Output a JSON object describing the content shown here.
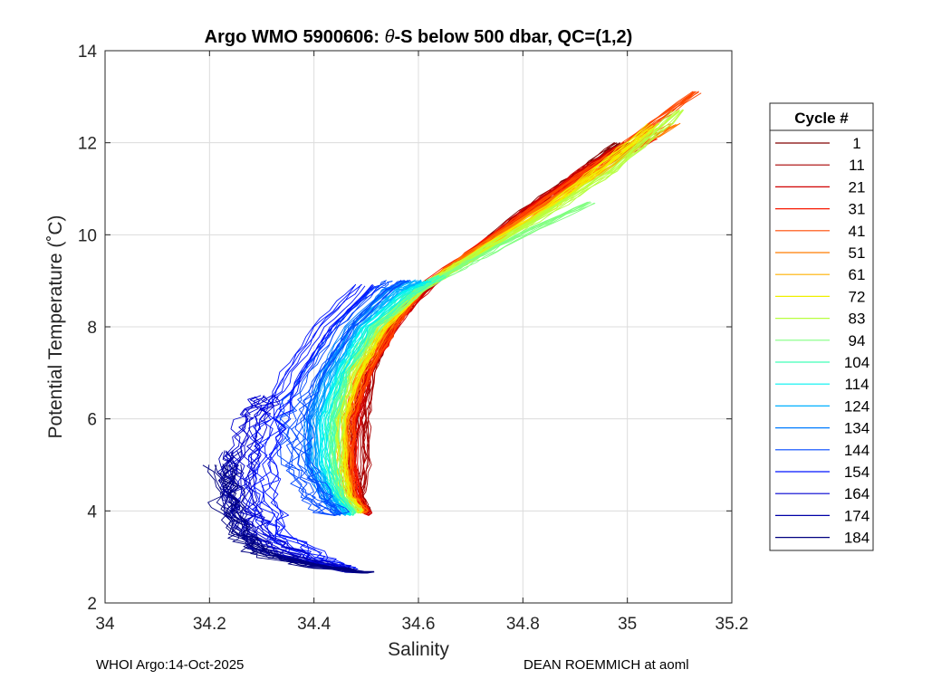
{
  "chart_data": {
    "type": "line",
    "title_parts": {
      "prefix": "Argo WMO 5900606: ",
      "symbol": "θ",
      "suffix": "-S below 500 dbar,  QC=(1,2)"
    },
    "xlabel": "Salinity",
    "ylabel": "Potential Temperature (˚C)",
    "xlim": [
      34,
      35.2
    ],
    "ylim": [
      2,
      14
    ],
    "xticks": [
      34,
      34.2,
      34.4,
      34.6,
      34.8,
      35,
      35.2
    ],
    "xtick_labels": [
      "34",
      "34.2",
      "34.4",
      "34.6",
      "34.8",
      "35",
      "35.2"
    ],
    "yticks": [
      2,
      4,
      6,
      8,
      10,
      12,
      14
    ],
    "ytick_labels": [
      "2",
      "4",
      "6",
      "8",
      "10",
      "12",
      "14"
    ],
    "grid": true,
    "legend": {
      "title": "Cycle #",
      "placement": "right-outside",
      "entries": [
        {
          "label": "1",
          "color": "#800000"
        },
        {
          "label": "11",
          "color": "#a80000"
        },
        {
          "label": "21",
          "color": "#d00000"
        },
        {
          "label": "31",
          "color": "#f81800"
        },
        {
          "label": "41",
          "color": "#ff4800"
        },
        {
          "label": "51",
          "color": "#ff7c00"
        },
        {
          "label": "61",
          "color": "#ffb000"
        },
        {
          "label": "72",
          "color": "#f0f000"
        },
        {
          "label": "83",
          "color": "#b8ff40"
        },
        {
          "label": "94",
          "color": "#80ff80"
        },
        {
          "label": "104",
          "color": "#40ffb8"
        },
        {
          "label": "114",
          "color": "#00f0f0"
        },
        {
          "label": "124",
          "color": "#00b0ff"
        },
        {
          "label": "134",
          "color": "#007cff"
        },
        {
          "label": "144",
          "color": "#0048ff"
        },
        {
          "label": "154",
          "color": "#0014ff"
        },
        {
          "label": "164",
          "color": "#0000d0"
        },
        {
          "label": "174",
          "color": "#0000a8"
        },
        {
          "label": "184",
          "color": "#000080"
        }
      ]
    },
    "groups": [
      {
        "cycle": "1",
        "color": "#800000",
        "profile": [
          [
            34.5,
            3.95
          ],
          [
            34.485,
            4.3
          ],
          [
            34.47,
            5
          ],
          [
            34.475,
            6
          ],
          [
            34.5,
            7
          ],
          [
            34.55,
            8
          ],
          [
            34.6,
            8.7
          ],
          [
            34.7,
            9.6
          ],
          [
            34.8,
            10.5
          ],
          [
            34.9,
            11.3
          ],
          [
            34.98,
            12
          ]
        ]
      },
      {
        "cycle": "11",
        "color": "#a80000",
        "profile": [
          [
            34.505,
            3.95
          ],
          [
            34.49,
            4.3
          ],
          [
            34.5,
            5
          ],
          [
            34.5,
            6
          ],
          [
            34.51,
            7
          ],
          [
            34.55,
            8
          ],
          [
            34.6,
            8.8
          ],
          [
            34.7,
            9.6
          ],
          [
            34.8,
            10.4
          ],
          [
            34.9,
            11.2
          ],
          [
            35,
            12
          ]
        ]
      },
      {
        "cycle": "21",
        "color": "#d00000",
        "profile": [
          [
            34.505,
            3.9
          ],
          [
            34.48,
            4.2
          ],
          [
            34.47,
            5
          ],
          [
            34.48,
            6
          ],
          [
            34.5,
            7
          ],
          [
            34.55,
            8
          ],
          [
            34.62,
            8.9
          ],
          [
            34.7,
            9.6
          ],
          [
            34.8,
            10.5
          ],
          [
            34.9,
            11.3
          ],
          [
            34.98,
            11.9
          ]
        ]
      },
      {
        "cycle": "31",
        "color": "#f81800",
        "profile": [
          [
            34.5,
            3.95
          ],
          [
            34.48,
            4.3
          ],
          [
            34.47,
            5
          ],
          [
            34.47,
            6
          ],
          [
            34.5,
            7
          ],
          [
            34.55,
            8
          ],
          [
            34.6,
            8.8
          ],
          [
            34.7,
            9.6
          ],
          [
            34.8,
            10.4
          ],
          [
            34.9,
            11.2
          ],
          [
            35.05,
            12.1
          ]
        ]
      },
      {
        "cycle": "41",
        "color": "#ff4800",
        "profile": [
          [
            34.5,
            3.95
          ],
          [
            34.475,
            4.3
          ],
          [
            34.465,
            5
          ],
          [
            34.47,
            6
          ],
          [
            34.5,
            7
          ],
          [
            34.55,
            8
          ],
          [
            34.6,
            8.8
          ],
          [
            34.7,
            9.6
          ],
          [
            34.85,
            10.8
          ],
          [
            35,
            12
          ],
          [
            35.13,
            13.1
          ]
        ]
      },
      {
        "cycle": "51",
        "color": "#ff7c00",
        "profile": [
          [
            34.495,
            3.95
          ],
          [
            34.47,
            4.3
          ],
          [
            34.46,
            5
          ],
          [
            34.46,
            6
          ],
          [
            34.49,
            7
          ],
          [
            34.54,
            8
          ],
          [
            34.6,
            8.8
          ],
          [
            34.7,
            9.6
          ],
          [
            34.85,
            10.7
          ],
          [
            35,
            11.8
          ],
          [
            35.09,
            12.4
          ]
        ]
      },
      {
        "cycle": "61",
        "color": "#ffb000",
        "profile": [
          [
            34.49,
            3.95
          ],
          [
            34.465,
            4.3
          ],
          [
            34.455,
            5
          ],
          [
            34.455,
            6
          ],
          [
            34.48,
            7
          ],
          [
            34.53,
            8
          ],
          [
            34.6,
            8.8
          ],
          [
            34.7,
            9.5
          ],
          [
            34.85,
            10.6
          ],
          [
            35,
            11.8
          ],
          [
            35.05,
            12.3
          ]
        ]
      },
      {
        "cycle": "72",
        "color": "#f0f000",
        "profile": [
          [
            34.49,
            3.95
          ],
          [
            34.46,
            4.3
          ],
          [
            34.45,
            5
          ],
          [
            34.45,
            6
          ],
          [
            34.48,
            7
          ],
          [
            34.53,
            8
          ],
          [
            34.6,
            8.8
          ],
          [
            34.7,
            9.5
          ],
          [
            34.85,
            10.6
          ],
          [
            34.95,
            11.5
          ],
          [
            35.05,
            12.4
          ]
        ]
      },
      {
        "cycle": "83",
        "color": "#b8ff40",
        "profile": [
          [
            34.485,
            3.95
          ],
          [
            34.455,
            4.3
          ],
          [
            34.445,
            5
          ],
          [
            34.445,
            6
          ],
          [
            34.47,
            7
          ],
          [
            34.52,
            8
          ],
          [
            34.6,
            8.8
          ],
          [
            34.7,
            9.5
          ],
          [
            34.85,
            10.5
          ],
          [
            34.97,
            11.4
          ],
          [
            35.1,
            12.7
          ]
        ]
      },
      {
        "cycle": "94",
        "color": "#80ff80",
        "profile": [
          [
            34.48,
            3.95
          ],
          [
            34.45,
            4.3
          ],
          [
            34.44,
            5
          ],
          [
            34.44,
            6
          ],
          [
            34.46,
            7
          ],
          [
            34.52,
            8
          ],
          [
            34.6,
            8.8
          ],
          [
            34.7,
            9.4
          ],
          [
            34.8,
            10
          ],
          [
            34.93,
            10.7
          ]
        ]
      },
      {
        "cycle": "104",
        "color": "#40ffb8",
        "profile": [
          [
            34.475,
            3.9
          ],
          [
            34.445,
            4.3
          ],
          [
            34.43,
            5
          ],
          [
            34.43,
            6
          ],
          [
            34.455,
            7
          ],
          [
            34.51,
            8
          ],
          [
            34.58,
            8.7
          ],
          [
            34.64,
            9.1
          ]
        ]
      },
      {
        "cycle": "114",
        "color": "#00f0f0",
        "profile": [
          [
            34.47,
            3.9
          ],
          [
            34.44,
            4.3
          ],
          [
            34.42,
            5
          ],
          [
            34.42,
            6
          ],
          [
            34.45,
            7
          ],
          [
            34.5,
            8
          ],
          [
            34.58,
            8.8
          ],
          [
            34.62,
            9
          ]
        ]
      },
      {
        "cycle": "124",
        "color": "#00b0ff",
        "profile": [
          [
            34.46,
            3.9
          ],
          [
            34.43,
            4.3
          ],
          [
            34.4,
            5
          ],
          [
            34.4,
            6
          ],
          [
            34.43,
            7
          ],
          [
            34.48,
            8
          ],
          [
            34.56,
            8.8
          ],
          [
            34.6,
            9
          ]
        ]
      },
      {
        "cycle": "134",
        "color": "#007cff",
        "profile": [
          [
            34.45,
            3.9
          ],
          [
            34.42,
            4.3
          ],
          [
            34.39,
            5
          ],
          [
            34.39,
            6
          ],
          [
            34.42,
            7
          ],
          [
            34.47,
            8
          ],
          [
            34.54,
            8.8
          ],
          [
            34.58,
            9
          ]
        ]
      },
      {
        "cycle": "144",
        "color": "#0048ff",
        "profile": [
          [
            34.44,
            3.9
          ],
          [
            34.4,
            4.3
          ],
          [
            34.37,
            5
          ],
          [
            34.36,
            6
          ],
          [
            34.4,
            7
          ],
          [
            34.46,
            8
          ],
          [
            34.53,
            8.8
          ],
          [
            34.56,
            9
          ]
        ]
      },
      {
        "cycle": "154",
        "color": "#0014ff",
        "profile": [
          [
            34.47,
            2.7
          ],
          [
            34.4,
            3
          ],
          [
            34.33,
            3.5
          ],
          [
            34.3,
            4.2
          ],
          [
            34.3,
            5
          ],
          [
            34.32,
            6
          ],
          [
            34.36,
            7
          ],
          [
            34.42,
            8
          ],
          [
            34.5,
            8.9
          ]
        ]
      },
      {
        "cycle": "164",
        "color": "#0000d0",
        "profile": [
          [
            34.48,
            2.7
          ],
          [
            34.38,
            2.95
          ],
          [
            34.3,
            3.4
          ],
          [
            34.27,
            4
          ],
          [
            34.26,
            5
          ],
          [
            34.28,
            6
          ],
          [
            34.31,
            6.5
          ]
        ]
      },
      {
        "cycle": "174",
        "color": "#0000a8",
        "profile": [
          [
            34.5,
            2.65
          ],
          [
            34.4,
            2.85
          ],
          [
            34.3,
            3.2
          ],
          [
            34.26,
            3.8
          ],
          [
            34.24,
            4.5
          ],
          [
            34.25,
            5.3
          ]
        ]
      },
      {
        "cycle": "184",
        "color": "#000080",
        "profile": [
          [
            34.5,
            2.65
          ],
          [
            34.4,
            2.8
          ],
          [
            34.3,
            3.05
          ],
          [
            34.25,
            3.5
          ],
          [
            34.23,
            4.2
          ],
          [
            34.22,
            5
          ]
        ]
      }
    ]
  },
  "footer": {
    "left": "WHOI Argo:14-Oct-2025",
    "right": "DEAN ROEMMICH at aoml"
  }
}
